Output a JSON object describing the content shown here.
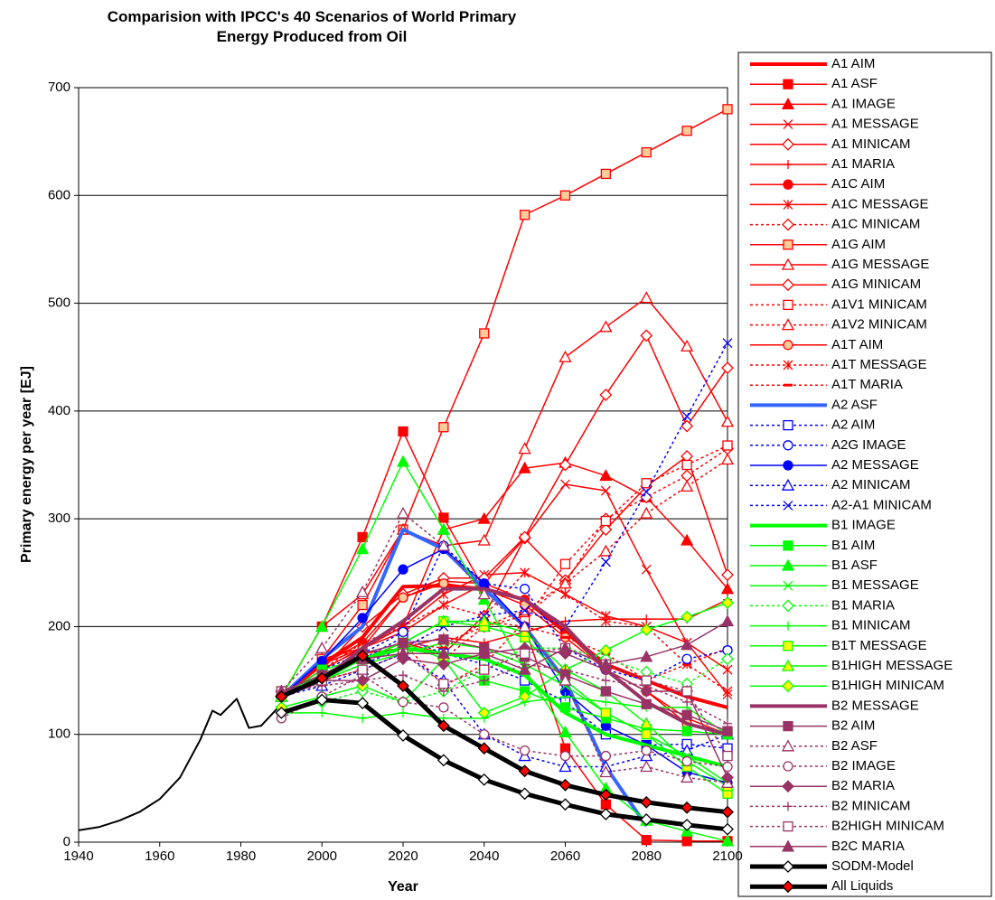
{
  "chart_data": {
    "type": "line",
    "title": "Comparision with IPCC's 40 Scenarios of World Primary Energy Produced from Oil",
    "x_label": "Year",
    "y_label": "Primary energy per year [EJ]",
    "xlim": [
      1940,
      2100
    ],
    "xticks": [
      1940,
      1960,
      1980,
      2000,
      2020,
      2040,
      2060,
      2080,
      2100
    ],
    "ylim": [
      0,
      700
    ],
    "yticks": [
      0,
      100,
      200,
      300,
      400,
      500,
      600,
      700
    ],
    "grid": true,
    "x": [
      1990,
      2000,
      2010,
      2020,
      2030,
      2040,
      2050,
      2060,
      2070,
      2080,
      2090,
      2100
    ],
    "history": {
      "color": "#000000",
      "x": [
        1940,
        1945,
        1950,
        1955,
        1960,
        1965,
        1970,
        1973,
        1975,
        1979,
        1982,
        1985,
        1988,
        1990
      ],
      "values": [
        11,
        14,
        20,
        28,
        40,
        60,
        95,
        122,
        118,
        133,
        106,
        108,
        120,
        128
      ]
    },
    "series": [
      {
        "name": "A1 AIM",
        "color": "#ff0000",
        "width": 4,
        "marker": "none",
        "values": [
          135,
          165,
          190,
          237,
          238,
          235,
          225,
          195,
          165,
          150,
          135,
          125
        ]
      },
      {
        "name": "A1 ASF",
        "color": "#ff0000",
        "marker": "square",
        "fill": "#ff0000",
        "values": [
          135,
          200,
          283,
          381,
          301,
          235,
          200,
          87,
          35,
          2,
          1,
          1
        ]
      },
      {
        "name": "A1 IMAGE",
        "color": "#ff0000",
        "marker": "triangle",
        "fill": "#ff0000",
        "values": [
          135,
          170,
          180,
          200,
          290,
          300,
          347,
          352,
          340,
          320,
          280,
          235
        ]
      },
      {
        "name": "A1 MESSAGE",
        "color": "#ff0000",
        "marker": "x",
        "values": [
          135,
          160,
          180,
          195,
          220,
          240,
          282,
          332,
          326,
          253,
          185,
          137
        ]
      },
      {
        "name": "A1 MINICAM",
        "color": "#ff0000",
        "marker": "diamond",
        "fill": "#ffffff",
        "values": [
          135,
          150,
          170,
          185,
          175,
          210,
          282,
          243,
          290,
          330,
          358,
          248
        ]
      },
      {
        "name": "A1 MARIA",
        "color": "#ff0000",
        "marker": "plus",
        "values": [
          135,
          150,
          175,
          180,
          190,
          185,
          195,
          205,
          207,
          207,
          207,
          225
        ]
      },
      {
        "name": "A1C AIM",
        "color": "#ff0000",
        "marker": "circle",
        "fill": "#ff0000",
        "values": [
          135,
          165,
          185,
          227,
          242,
          240,
          225,
          195,
          160,
          140,
          115,
          100
        ]
      },
      {
        "name": "A1C MESSAGE",
        "color": "#ff0000",
        "marker": "star",
        "values": [
          135,
          160,
          180,
          200,
          230,
          248,
          250,
          230,
          210,
          200,
          185,
          160
        ]
      },
      {
        "name": "A1C MINICAM",
        "color": "#ff0000",
        "dash": true,
        "marker": "diamond",
        "fill": "#ffffff",
        "values": [
          135,
          150,
          160,
          175,
          185,
          200,
          210,
          240,
          300,
          320,
          340,
          365
        ]
      },
      {
        "name": "A1G AIM",
        "color": "#ff0000",
        "marker": "square",
        "fill": "#ffcc99",
        "values": [
          135,
          170,
          220,
          290,
          385,
          472,
          582,
          600,
          620,
          640,
          660,
          680
        ]
      },
      {
        "name": "A1G MESSAGE",
        "color": "#ff0000",
        "marker": "triangle",
        "fill": "#ffffff",
        "values": [
          135,
          200,
          230,
          290,
          275,
          280,
          365,
          450,
          478,
          505,
          460,
          390
        ]
      },
      {
        "name": "A1G MINICAM",
        "color": "#ff0000",
        "marker": "diamond",
        "fill": "#ffffff",
        "values": [
          135,
          160,
          200,
          230,
          245,
          245,
          283,
          350,
          415,
          470,
          386,
          440
        ]
      },
      {
        "name": "A1V1 MINICAM",
        "color": "#ff0000",
        "dash": true,
        "marker": "square",
        "fill": "#ffffff",
        "values": [
          135,
          150,
          170,
          185,
          145,
          165,
          205,
          258,
          298,
          333,
          350,
          368
        ]
      },
      {
        "name": "A1V2 MINICAM",
        "color": "#ff0000",
        "dash": true,
        "marker": "triangle",
        "fill": "#ffffff",
        "values": [
          135,
          150,
          170,
          185,
          170,
          200,
          215,
          240,
          270,
          305,
          330,
          355
        ]
      },
      {
        "name": "A1T AIM",
        "color": "#ff0000",
        "marker": "circle",
        "fill": "#ffcc99",
        "values": [
          135,
          165,
          180,
          227,
          240,
          235,
          220,
          190,
          160,
          140,
          110,
          100
        ]
      },
      {
        "name": "A1T MESSAGE",
        "color": "#ff0000",
        "dash": true,
        "marker": "star",
        "values": [
          135,
          160,
          185,
          200,
          220,
          210,
          250,
          230,
          205,
          200,
          165,
          140
        ]
      },
      {
        "name": "A1T MARIA",
        "color": "#ff0000",
        "dash": true,
        "marker": "dash",
        "values": [
          135,
          150,
          175,
          185,
          180,
          205,
          200,
          190,
          175,
          150,
          165,
          180
        ]
      },
      {
        "name": "A2 ASF",
        "color": "#3366ff",
        "width": 4,
        "marker": "none",
        "values": [
          135,
          170,
          200,
          290,
          272,
          235,
          200,
          150,
          70,
          15,
          null,
          null
        ]
      },
      {
        "name": "A2 AIM",
        "color": "#0000ff",
        "dash": true,
        "marker": "square",
        "fill": "#ffffff",
        "values": [
          135,
          150,
          170,
          190,
          175,
          165,
          150,
          130,
          100,
          90,
          91,
          87
        ]
      },
      {
        "name": "A2G IMAGE",
        "color": "#0000ff",
        "dash": true,
        "marker": "circle",
        "fill": "#ffffff",
        "values": [
          135,
          160,
          175,
          195,
          275,
          240,
          235,
          180,
          160,
          150,
          170,
          178
        ]
      },
      {
        "name": "A2 MESSAGE",
        "color": "#0000ff",
        "marker": "circle",
        "fill": "#0000ff",
        "values": [
          135,
          168,
          208,
          253,
          272,
          240,
          200,
          140,
          108,
          90,
          65,
          55
        ]
      },
      {
        "name": "A2 MINICAM",
        "color": "#0000ff",
        "dash": true,
        "marker": "triangle",
        "fill": "#ffffff",
        "values": [
          135,
          145,
          160,
          175,
          150,
          100,
          80,
          70,
          70,
          80,
          85,
          100
        ]
      },
      {
        "name": "A2-A1 MINICAM",
        "color": "#0000ff",
        "dash": true,
        "marker": "x",
        "values": [
          135,
          150,
          165,
          180,
          200,
          210,
          215,
          200,
          260,
          325,
          395,
          463
        ]
      },
      {
        "name": "B1 IMAGE",
        "color": "#00ff00",
        "width": 4,
        "marker": "none",
        "values": [
          135,
          155,
          170,
          180,
          175,
          170,
          155,
          120,
          100,
          90,
          80,
          70
        ]
      },
      {
        "name": "B1 AIM",
        "color": "#00ff00",
        "marker": "square",
        "fill": "#00ff00",
        "values": [
          135,
          160,
          170,
          185,
          170,
          150,
          140,
          125,
          115,
          105,
          103,
          100
        ]
      },
      {
        "name": "B1 ASF",
        "color": "#00ff00",
        "marker": "triangle",
        "fill": "#00ff00",
        "values": [
          135,
          200,
          272,
          353,
          290,
          225,
          160,
          102,
          50,
          20,
          10,
          1
        ]
      },
      {
        "name": "B1 MESSAGE",
        "color": "#00ff00",
        "marker": "x",
        "values": [
          135,
          150,
          165,
          175,
          185,
          180,
          165,
          145,
          120,
          100,
          80,
          55
        ]
      },
      {
        "name": "B1 MARIA",
        "color": "#00ff00",
        "dash": true,
        "marker": "diamond",
        "fill": "#ffffff",
        "values": [
          120,
          130,
          140,
          130,
          140,
          160,
          180,
          180,
          170,
          158,
          147,
          170
        ]
      },
      {
        "name": "B1 MINICAM",
        "color": "#00ff00",
        "marker": "plus",
        "values": [
          120,
          120,
          115,
          120,
          115,
          115,
          130,
          135,
          130,
          125,
          125,
          100
        ]
      },
      {
        "name": "B1T MESSAGE",
        "color": "#00ff00",
        "marker": "square",
        "fill": "#ffff00",
        "values": [
          135,
          150,
          170,
          185,
          205,
          200,
          190,
          150,
          120,
          100,
          70,
          45
        ]
      },
      {
        "name": "B1HIGH MESSAGE",
        "color": "#00ff00",
        "marker": "triangle",
        "fill": "#ffff00",
        "values": [
          135,
          150,
          170,
          185,
          205,
          205,
          195,
          160,
          140,
          110,
          75,
          52
        ]
      },
      {
        "name": "B1HIGH MINICAM",
        "color": "#00ff00",
        "marker": "diamond",
        "fill": "#ffff00",
        "values": [
          125,
          135,
          145,
          130,
          170,
          120,
          135,
          160,
          178,
          197,
          209,
          222
        ]
      },
      {
        "name": "B2 MESSAGE",
        "color": "#993366",
        "width": 4,
        "marker": "none",
        "values": [
          135,
          150,
          180,
          205,
          235,
          235,
          225,
          200,
          160,
          130,
          110,
          100
        ]
      },
      {
        "name": "B2 AIM",
        "color": "#993366",
        "marker": "square",
        "fill": "#993366",
        "values": [
          140,
          155,
          175,
          185,
          188,
          180,
          172,
          155,
          140,
          128,
          118,
          103
        ]
      },
      {
        "name": "B2 ASF",
        "color": "#993366",
        "dash": true,
        "marker": "triangle",
        "fill": "#ffffff",
        "values": [
          140,
          180,
          232,
          305,
          275,
          230,
          200,
          150,
          65,
          70,
          60,
          55
        ]
      },
      {
        "name": "B2 IMAGE",
        "color": "#993366",
        "dash": true,
        "marker": "circle",
        "fill": "#ffffff",
        "values": [
          115,
          135,
          155,
          130,
          125,
          100,
          85,
          80,
          80,
          85,
          75,
          70
        ]
      },
      {
        "name": "B2 MARIA",
        "color": "#993366",
        "marker": "diamond",
        "fill": "#993366",
        "values": [
          140,
          150,
          150,
          170,
          165,
          175,
          180,
          175,
          160,
          140,
          140,
          60
        ]
      },
      {
        "name": "B2 MINICAM",
        "color": "#993366",
        "dash": true,
        "marker": "plus",
        "values": [
          140,
          145,
          150,
          155,
          140,
          150,
          165,
          160,
          150,
          145,
          130,
          110
        ]
      },
      {
        "name": "B2HIGH MINICAM",
        "color": "#993366",
        "dash": true,
        "marker": "square",
        "fill": "#ffffff",
        "values": [
          140,
          150,
          160,
          175,
          147,
          160,
          175,
          180,
          165,
          150,
          140,
          80
        ]
      },
      {
        "name": "B2C MARIA",
        "color": "#993366",
        "marker": "triangle",
        "fill": "#993366",
        "values": [
          140,
          155,
          170,
          175,
          175,
          175,
          160,
          180,
          165,
          172,
          183,
          205
        ]
      },
      {
        "name": "SODM-Model",
        "color": "#000000",
        "width": 5,
        "marker": "diamond",
        "fill": "#ffffff",
        "values": [
          120,
          132,
          129,
          99,
          76,
          58,
          45,
          35,
          26,
          21,
          16,
          12
        ]
      },
      {
        "name": "All Liquids",
        "color": "#000000",
        "width": 5,
        "marker": "diamond",
        "fill": "#ff0000",
        "values": [
          135,
          152,
          173,
          145,
          108,
          87,
          66,
          53,
          44,
          37,
          32,
          28
        ]
      }
    ]
  }
}
